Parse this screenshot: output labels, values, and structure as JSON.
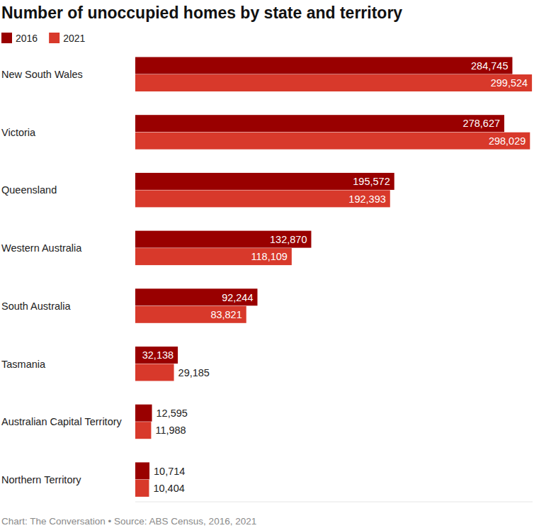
{
  "chart_data": {
    "type": "bar",
    "orientation": "horizontal",
    "title": "Number of unoccupied homes by state and territory",
    "source": "Chart: The Conversation • Source: ABS Census, 2016, 2021",
    "categories": [
      "New South Wales",
      "Victoria",
      "Queensland",
      "Western Australia",
      "South Australia",
      "Tasmania",
      "Australian Capital Territory",
      "Northern Territory"
    ],
    "series": [
      {
        "name": "2016",
        "color": "#990000",
        "values": [
          284745,
          278627,
          195572,
          132870,
          92244,
          32138,
          12595,
          10714
        ],
        "value_labels": [
          "284,745",
          "278,627",
          "195,572",
          "132,870",
          "92,244",
          "32,138",
          "12,595",
          "10,714"
        ]
      },
      {
        "name": "2021",
        "color": "#d8392b",
        "values": [
          299524,
          298029,
          192393,
          118109,
          83821,
          29185,
          11988,
          10404
        ],
        "value_labels": [
          "299,524",
          "298,029",
          "192,393",
          "118,109",
          "83,821",
          "29,185",
          "11,988",
          "10,404"
        ]
      }
    ],
    "xlim": [
      0,
      300000
    ],
    "xticks": [],
    "tick_labels": "y",
    "grid": false,
    "legend": "top-left",
    "data_labels": true
  }
}
